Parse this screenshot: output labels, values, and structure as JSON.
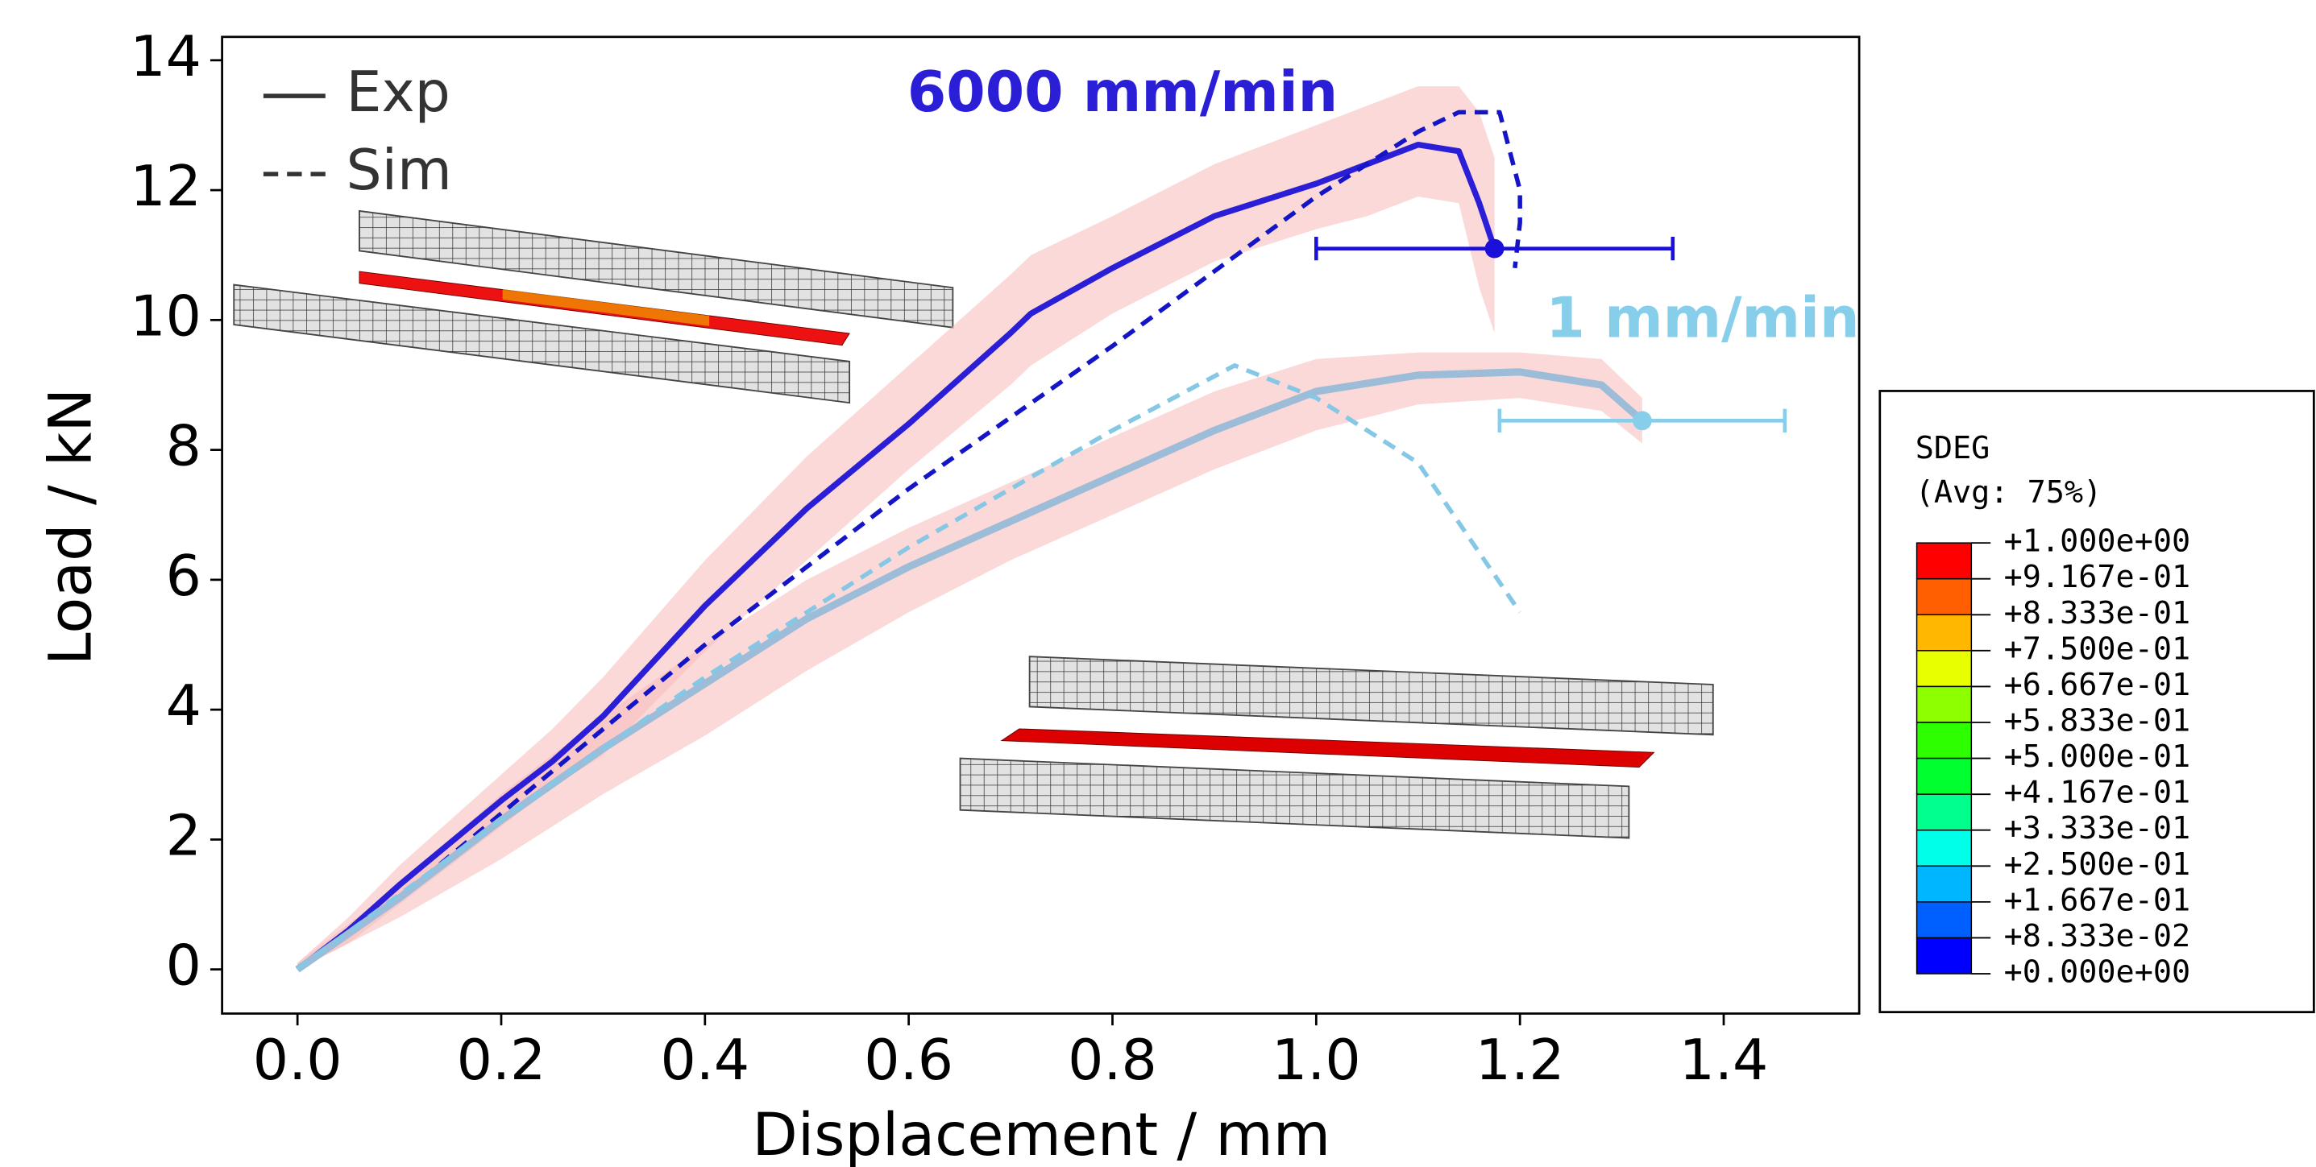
{
  "chart_data": {
    "type": "line",
    "x_label": "Displacement / mm",
    "y_label": "Load / kN",
    "xlim": [
      -0.074,
      1.533
    ],
    "ylim": [
      -0.68,
      14.36
    ],
    "xticks": [
      {
        "value": 0,
        "label": "0.0"
      },
      {
        "value": 0.2,
        "label": "0.2"
      },
      {
        "value": 0.4,
        "label": "0.4"
      },
      {
        "value": 0.6,
        "label": "0.6"
      },
      {
        "value": 0.8,
        "label": "0.8"
      },
      {
        "value": 1.0,
        "label": "1.0"
      },
      {
        "value": 1.2,
        "label": "1.2"
      },
      {
        "value": 1.4,
        "label": "1.4"
      }
    ],
    "yticks": [
      0,
      2,
      4,
      6,
      8,
      10,
      12,
      14
    ],
    "legend": {
      "position": "upper left",
      "entries": [
        {
          "name": "Exp",
          "style": "solid"
        },
        {
          "name": "Sim",
          "style": "dashed"
        }
      ]
    },
    "annotations": [
      {
        "text": "6000 mm/min",
        "color": "#2a1fd6"
      },
      {
        "text": "1 mm/min",
        "color": "#87ceeb"
      }
    ],
    "series": [
      {
        "color": "#2a1fd6",
        "style": "solid",
        "width": 4,
        "band_color": "#f7b9b9",
        "x": [
          0,
          0.05,
          0.1,
          0.2,
          0.25,
          0.3,
          0.4,
          0.5,
          0.6,
          0.7,
          0.72,
          0.8,
          0.9,
          1.0,
          1.05,
          1.1,
          1.14,
          1.16,
          1.175
        ],
        "values": [
          0,
          0.6,
          1.3,
          2.6,
          3.2,
          3.9,
          5.6,
          7.1,
          8.4,
          9.8,
          10.1,
          10.8,
          11.6,
          12.1,
          12.4,
          12.7,
          12.6,
          11.8,
          11.1
        ],
        "band_upper": [
          0.1,
          0.8,
          1.6,
          3.0,
          3.7,
          4.5,
          6.3,
          7.9,
          9.3,
          10.7,
          11.0,
          11.6,
          12.4,
          13.0,
          13.3,
          13.6,
          13.6,
          13.2,
          12.5
        ],
        "band_lower": [
          0,
          0.4,
          1.0,
          2.2,
          2.8,
          3.3,
          4.9,
          6.3,
          7.7,
          9.0,
          9.3,
          10.1,
          10.9,
          11.4,
          11.6,
          11.9,
          11.8,
          10.5,
          9.8
        ]
      },
      {
        "color": "#1515c8",
        "style": "dashed",
        "width": 3,
        "x": [
          0,
          0.1,
          0.2,
          0.4,
          0.6,
          0.8,
          1.0,
          1.1,
          1.14,
          1.18,
          1.2,
          1.2,
          1.195
        ],
        "values": [
          0,
          1.1,
          2.4,
          5.0,
          7.4,
          9.6,
          11.9,
          12.9,
          13.2,
          13.2,
          12.0,
          11.5,
          10.8
        ]
      },
      {
        "color": "#9cbcd8",
        "style": "solid",
        "width": 5,
        "band_color": "#f7b9b9",
        "x": [
          0,
          0.1,
          0.2,
          0.3,
          0.4,
          0.5,
          0.6,
          0.7,
          0.8,
          0.9,
          1.0,
          1.1,
          1.2,
          1.28,
          1.32
        ],
        "values": [
          0,
          1.1,
          2.3,
          3.4,
          4.4,
          5.4,
          6.2,
          6.9,
          7.6,
          8.3,
          8.9,
          9.15,
          9.2,
          9.0,
          8.45
        ],
        "band_upper": [
          0.1,
          1.3,
          2.7,
          3.9,
          5.0,
          6.0,
          6.8,
          7.5,
          8.2,
          8.9,
          9.4,
          9.5,
          9.5,
          9.4,
          8.8
        ],
        "band_lower": [
          0,
          0.8,
          1.7,
          2.7,
          3.6,
          4.6,
          5.5,
          6.3,
          7.0,
          7.7,
          8.3,
          8.7,
          8.8,
          8.6,
          8.1
        ]
      },
      {
        "color": "#87c7e6",
        "style": "dashed",
        "width": 3,
        "x": [
          0,
          0.2,
          0.4,
          0.6,
          0.8,
          0.92,
          1.0,
          1.1,
          1.2
        ],
        "values": [
          0,
          2.3,
          4.5,
          6.5,
          8.3,
          9.3,
          8.8,
          7.8,
          5.5
        ]
      }
    ],
    "error_points": [
      {
        "x": 1.175,
        "y": 11.1,
        "xerr": 0.175,
        "color": "#1a10d8"
      },
      {
        "x": 1.32,
        "y": 8.45,
        "xerr": 0.14,
        "color": "#87ceeb"
      }
    ],
    "contour_legend": {
      "title": "SDEG",
      "subtitle": "(Avg: 75%)",
      "labels": [
        "+1.000e+00",
        "+9.167e-01",
        "+8.333e-01",
        "+7.500e-01",
        "+6.667e-01",
        "+5.833e-01",
        "+5.000e-01",
        "+4.167e-01",
        "+3.333e-01",
        "+2.500e-01",
        "+1.667e-01",
        "+8.333e-02",
        "+0.000e+00"
      ],
      "colors": [
        "#ff0000",
        "#ff5f00",
        "#ffb700",
        "#e8ff00",
        "#8dff00",
        "#2eff00",
        "#00ff2e",
        "#00ff8d",
        "#00ffe8",
        "#00b7ff",
        "#005fff",
        "#0000ff"
      ]
    }
  }
}
